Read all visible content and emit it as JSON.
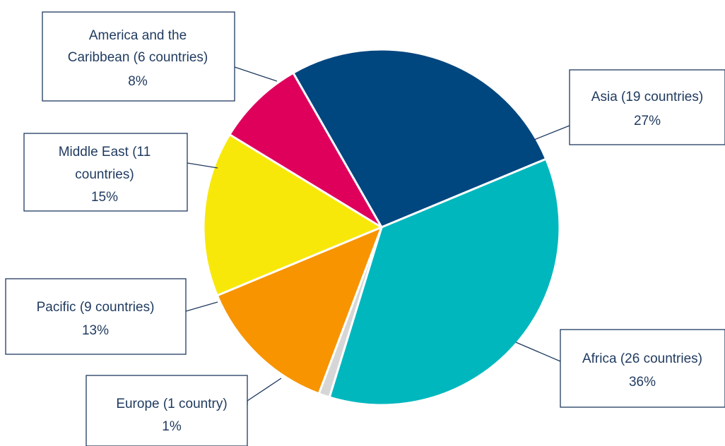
{
  "chart_data": {
    "type": "pie",
    "title": "",
    "slices": [
      {
        "name": "Asia",
        "label_lines": [
          "Asia (19 countries)"
        ],
        "percent_label": "27%",
        "value": 27,
        "color": "#00467f"
      },
      {
        "name": "Africa",
        "label_lines": [
          "Africa (26 countries)"
        ],
        "percent_label": "36%",
        "value": 36,
        "color": "#00b7bd"
      },
      {
        "name": "Europe",
        "label_lines": [
          "Europe (1 country)"
        ],
        "percent_label": "1%",
        "value": 1,
        "color": "#d6d6d6"
      },
      {
        "name": "Pacific",
        "label_lines": [
          "Pacific (9 countries)"
        ],
        "percent_label": "13%",
        "value": 13,
        "color": "#f79400"
      },
      {
        "name": "Middle East",
        "label_lines": [
          "Middle East (11",
          "countries)"
        ],
        "percent_label": "15%",
        "value": 15,
        "color": "#f8e80a"
      },
      {
        "name": "America and the Caribbean",
        "label_lines": [
          "America and the",
          "Caribbean (6 countries)"
        ],
        "percent_label": "8%",
        "value": 8,
        "color": "#df005c"
      }
    ]
  }
}
